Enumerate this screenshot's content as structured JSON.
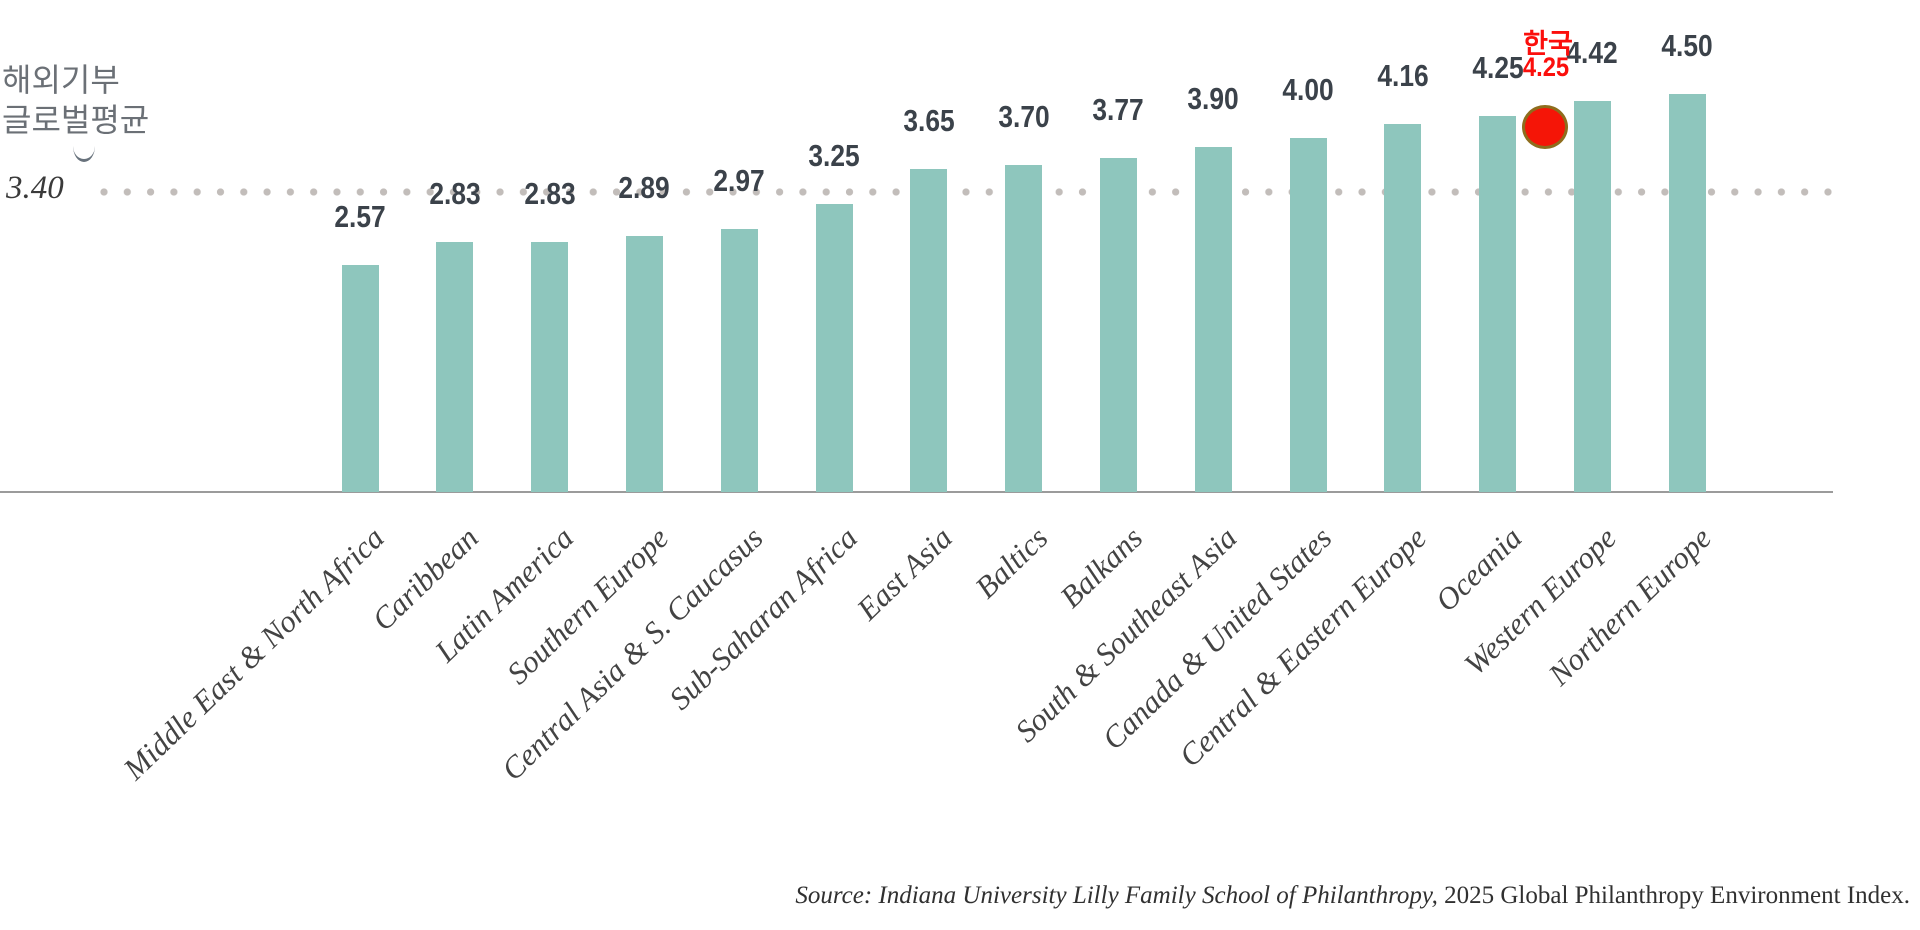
{
  "header": {
    "line1": "해외기부",
    "line2": "글로벌평균"
  },
  "reference": {
    "value_label": "3.40",
    "value": 3.4,
    "dot_color": "#c2bdba"
  },
  "chart_data": {
    "type": "bar",
    "title": "",
    "xlabel": "",
    "ylabel": "",
    "ylim": [
      0,
      4.6
    ],
    "grid": "off",
    "legend": "none",
    "bar_color": "#8ec6bd",
    "value_label_color": "#3b424a",
    "categories": [
      "Middle East & North Africa",
      "Caribbean",
      "Latin America",
      "Southern Europe",
      "Central Asia & S. Caucasus",
      "Sub-Saharan Africa",
      "East Asia",
      "Baltics",
      "Balkans",
      "South & Southeast Asia",
      "Canada & United States",
      "Central & Eastern Europe",
      "Oceania",
      "Western Europe",
      "Northern Europe"
    ],
    "values": [
      2.57,
      2.83,
      2.83,
      2.89,
      2.97,
      3.25,
      3.65,
      3.7,
      3.77,
      3.9,
      4.0,
      4.16,
      4.25,
      4.42,
      4.5
    ],
    "value_labels": [
      "2.57",
      "2.83",
      "2.83",
      "2.89",
      "2.97",
      "3.25",
      "3.65",
      "3.70",
      "3.77",
      "3.90",
      "4.00",
      "4.16",
      "4.25",
      "4.42",
      "4.50"
    ],
    "reference_line": {
      "label": "3.40",
      "value": 3.4
    },
    "annotation": {
      "label": "한국",
      "value": "4.25",
      "marker": "red-circle",
      "marker_fill": "#f51507",
      "marker_border": "#8e6d1d",
      "text_color": "#fb0f0c",
      "position_between": [
        "Oceania",
        "Western Europe"
      ]
    }
  },
  "source": {
    "italic": "Source: Indiana University Lilly Family School of Philanthropy,",
    "regular": " 2025 Global Philanthropy Environment Index."
  }
}
